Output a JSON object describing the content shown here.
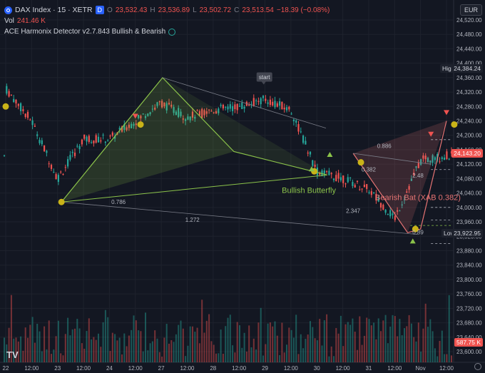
{
  "header": {
    "symbol": "DAX Index · 15 · XETR",
    "badge_d": "D",
    "ohlc": {
      "o_label": "O",
      "o": "23,532.43",
      "h_label": "H",
      "h": "23,536.89",
      "l_label": "L",
      "l": "23,502.72",
      "c_label": "C",
      "c": "23,513.54",
      "chg": "−18.39 (−0.08%)"
    },
    "vol_label": "Vol",
    "vol": "241.46 K",
    "indicator": "ACE Harmonix Detector v2.7.843 Bullish & Bearish",
    "currency": "EUR"
  },
  "price_axis": {
    "ticks": [
      "24,520.00",
      "24,480.00",
      "24,440.00",
      "24,400.00",
      "24,360.00",
      "24,320.00",
      "24,280.00",
      "24,240.00",
      "24,200.00",
      "24,160.00",
      "24,120.00",
      "24,080.00",
      "24,040.00",
      "24,000.00",
      "23,960.00",
      "23,920.00",
      "23,880.00",
      "23,840.00",
      "23,800.00",
      "23,760.00",
      "23,720.00",
      "23,680.00",
      "23,640.00",
      "23,600.00"
    ],
    "top_tick": "24,520.00"
  },
  "tags": {
    "high_label": "High",
    "high_value": "24,384.24",
    "last_value": "24,143.20",
    "low_label": "Low",
    "low_value": "23,922.95",
    "vol_value": "587.75 K"
  },
  "time_axis": [
    "22",
    "12:00",
    "23",
    "12:00",
    "24",
    "12:00",
    "27",
    "12:00",
    "28",
    "12:00",
    "29",
    "12:00",
    "30",
    "12:00",
    "31",
    "12:00",
    "Nov",
    "12:00"
  ],
  "annotations": {
    "start": "start",
    "bullish": "Bullish Butterfly",
    "bearish": "Bearish Bat (XAB 0.382)",
    "r0786": "0.786",
    "r1272": "1.272",
    "r0886": "0.886",
    "r0382": "0.382",
    "r2347": "2.347",
    "r248": "2.48",
    "r089": "0.89"
  },
  "chart_data": {
    "type": "candlestick",
    "title": "DAX Index · 15 · XETR",
    "ylim": [
      23600,
      24520
    ],
    "x": [
      "22",
      "12:00",
      "23",
      "12:00",
      "24",
      "12:00",
      "27",
      "12:00",
      "28",
      "12:00",
      "29",
      "12:00",
      "30",
      "12:00",
      "31",
      "12:00",
      "Nov",
      "12:00"
    ],
    "close_path": [
      {
        "x": "22",
        "y": 24330
      },
      {
        "x": "22 12:00",
        "y": 24240
      },
      {
        "x": "23",
        "y": 24080
      },
      {
        "x": "23 12:00",
        "y": 24190
      },
      {
        "x": "24",
        "y": 24190
      },
      {
        "x": "24 12:00",
        "y": 24240
      },
      {
        "x": "27",
        "y": 24290
      },
      {
        "x": "27 12:00",
        "y": 24250
      },
      {
        "x": "28",
        "y": 24270
      },
      {
        "x": "28 12:00",
        "y": 24280
      },
      {
        "x": "29",
        "y": 24300
      },
      {
        "x": "29 12:00",
        "y": 24270
      },
      {
        "x": "30",
        "y": 24100
      },
      {
        "x": "30 12:00",
        "y": 24080
      },
      {
        "x": "31",
        "y": 24050
      },
      {
        "x": "31 12:00",
        "y": 23970
      },
      {
        "x": "Nov",
        "y": 24130
      },
      {
        "x": "Nov 12:00",
        "y": 24143.2
      }
    ],
    "high": 24384.24,
    "low": 23922.95,
    "last": 24143.2,
    "volume_last": "587.75 K",
    "colors": {
      "up": "#26a69a",
      "down": "#ef5350",
      "bg": "#131722",
      "pattern_bull": "#8bc34a",
      "pattern_bear": "#e57373"
    }
  }
}
